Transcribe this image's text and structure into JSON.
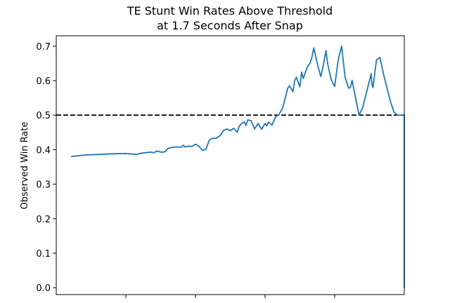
{
  "chart_data": {
    "type": "line",
    "title_lines": [
      "TE Stunt Win Rates Above Threshold",
      "at 1.7 Seconds After Snap"
    ],
    "xlabel": "",
    "ylabel": "Observed Win Rate",
    "xlim": [
      0,
      1
    ],
    "ylim": [
      -0.02,
      0.73
    ],
    "yticks": [
      0.0,
      0.1,
      0.2,
      0.3,
      0.4,
      0.5,
      0.6,
      0.7
    ],
    "ytick_labels": [
      "0.0",
      "0.1",
      "0.2",
      "0.3",
      "0.4",
      "0.5",
      "0.6",
      "0.7"
    ],
    "xticks": [
      0.2,
      0.4,
      0.6,
      0.8
    ],
    "xtick_labels": [
      "",
      "",
      "",
      ""
    ],
    "grid": false,
    "threshold": {
      "y": 0.5,
      "style": "dashed",
      "color": "#000000"
    },
    "series": [
      {
        "color": "#1f77b4",
        "x": [
          0.043,
          0.08,
          0.12,
          0.16,
          0.2,
          0.23,
          0.24,
          0.27,
          0.28,
          0.29,
          0.3,
          0.31,
          0.315,
          0.32,
          0.33,
          0.345,
          0.36,
          0.365,
          0.37,
          0.38,
          0.39,
          0.4,
          0.41,
          0.415,
          0.42,
          0.43,
          0.435,
          0.44,
          0.45,
          0.46,
          0.47,
          0.475,
          0.48,
          0.49,
          0.5,
          0.51,
          0.52,
          0.525,
          0.53,
          0.54,
          0.545,
          0.55,
          0.56,
          0.57,
          0.58,
          0.59,
          0.6,
          0.605,
          0.61,
          0.62,
          0.63,
          0.64,
          0.65,
          0.655,
          0.66,
          0.665,
          0.67,
          0.68,
          0.685,
          0.69,
          0.7,
          0.705,
          0.71,
          0.72,
          0.73,
          0.735,
          0.74,
          0.75,
          0.76,
          0.765,
          0.77,
          0.775,
          0.78,
          0.79,
          0.8,
          0.81,
          0.82,
          0.83,
          0.84,
          0.845,
          0.85,
          0.86,
          0.87,
          0.875,
          0.88,
          0.89,
          0.9,
          0.905,
          0.906,
          0.908,
          0.91,
          0.92,
          0.93,
          0.94,
          0.95,
          0.96,
          0.97,
          0.98,
          0.99,
          1.0,
          1.0
        ],
        "values": [
          0.38,
          0.384,
          0.386,
          0.388,
          0.389,
          0.386,
          0.389,
          0.393,
          0.391,
          0.396,
          0.393,
          0.393,
          0.396,
          0.403,
          0.406,
          0.408,
          0.407,
          0.413,
          0.408,
          0.41,
          0.409,
          0.416,
          0.41,
          0.404,
          0.398,
          0.401,
          0.415,
          0.428,
          0.433,
          0.433,
          0.44,
          0.446,
          0.455,
          0.46,
          0.455,
          0.462,
          0.45,
          0.467,
          0.473,
          0.481,
          0.47,
          0.486,
          0.484,
          0.46,
          0.476,
          0.459,
          0.476,
          0.469,
          0.48,
          0.471,
          0.495,
          0.502,
          0.52,
          0.538,
          0.558,
          0.578,
          0.585,
          0.568,
          0.6,
          0.61,
          0.582,
          0.625,
          0.606,
          0.637,
          0.652,
          0.67,
          0.695,
          0.649,
          0.612,
          0.633,
          0.66,
          0.687,
          0.648,
          0.602,
          0.583,
          0.66,
          0.7,
          0.61,
          0.578,
          0.58,
          0.601,
          0.55,
          0.5,
          0.51,
          0.52,
          0.56,
          0.6,
          0.62,
          0.6,
          0.585,
          0.58,
          0.66,
          0.667,
          0.62,
          0.58,
          0.54,
          0.51,
          0.5,
          0.5,
          0.5,
          0.0
        ]
      }
    ]
  }
}
